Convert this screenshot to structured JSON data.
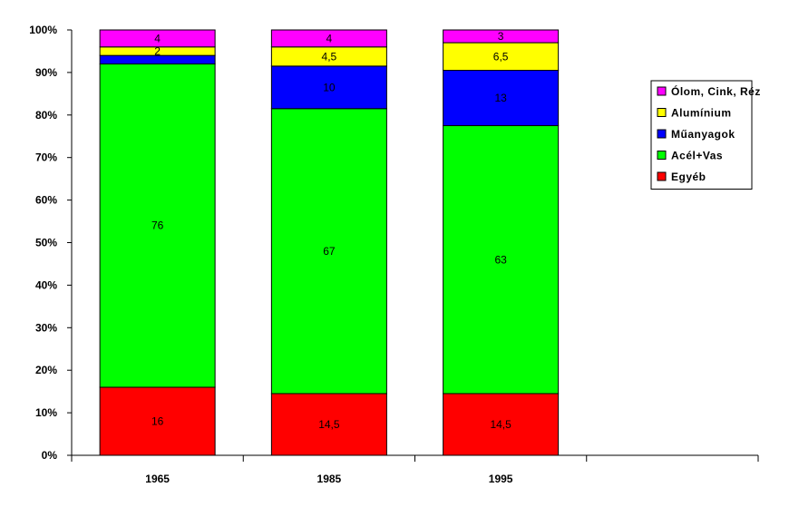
{
  "chart_data": {
    "type": "bar",
    "stacked": true,
    "normalized": true,
    "categories": [
      "1965",
      "1985",
      "1995"
    ],
    "series": [
      {
        "name": "Egyéb",
        "color": "#ff0000",
        "values": [
          16,
          14.5,
          14.5
        ],
        "labels": [
          "16",
          "14,5",
          "14,5"
        ]
      },
      {
        "name": "Acél+Vas",
        "color": "#00ff00",
        "values": [
          76,
          67,
          63
        ],
        "labels": [
          "76",
          "67",
          "63"
        ]
      },
      {
        "name": "Műanyagok",
        "color": "#0000ff",
        "values": [
          2,
          10,
          13
        ],
        "labels": [
          "",
          "10",
          "13"
        ]
      },
      {
        "name": "Alumínium",
        "color": "#ffff00",
        "values": [
          2,
          4.5,
          6.5
        ],
        "labels": [
          "2",
          "4,5",
          "6,5"
        ]
      },
      {
        "name": "Ólom, Cink, Réz",
        "color": "#ff00ff",
        "values": [
          4,
          4,
          3
        ],
        "labels": [
          "4",
          "4",
          "3"
        ]
      }
    ],
    "legend_entries": [
      "Ólom, Cink, Réz",
      "Alumínium",
      "Műanyagok",
      "Acél+Vas",
      "Egyéb"
    ],
    "ylim": [
      0,
      100
    ],
    "yticks": [
      "0%",
      "10%",
      "20%",
      "30%",
      "40%",
      "50%",
      "60%",
      "70%",
      "80%",
      "90%",
      "100%"
    ],
    "category_slots": 4,
    "grid": false,
    "legend_position": "right"
  }
}
